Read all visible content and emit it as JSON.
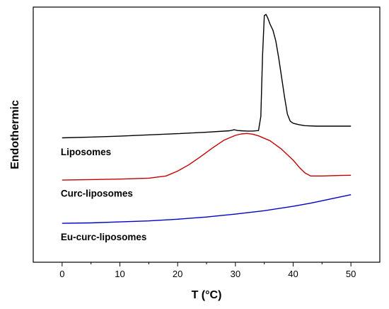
{
  "chart_data": {
    "type": "line",
    "title": "",
    "xlabel": "T (°C)",
    "ylabel": "Endothermic",
    "xlim": [
      -5,
      55
    ],
    "xticks": [
      0,
      10,
      20,
      30,
      40,
      50
    ],
    "ylim": [
      -0.5,
      10
    ],
    "y_tick_labels": false,
    "grid": false,
    "legend": "none",
    "series": [
      {
        "name": "Liposomes",
        "color": "#000000",
        "label_at": [
          0,
          3.9
        ],
        "x": [
          0,
          5,
          10,
          15,
          20,
          25,
          29,
          29.8,
          30.4,
          31,
          32,
          33,
          34,
          34.4,
          34.7,
          35,
          35.3,
          35.6,
          36,
          36.5,
          37,
          37.5,
          38,
          38.5,
          39,
          39.5,
          40,
          41,
          42,
          44,
          46,
          48,
          50
        ],
        "y": [
          4.62,
          4.65,
          4.69,
          4.74,
          4.79,
          4.85,
          4.91,
          4.95,
          4.92,
          4.91,
          4.9,
          4.9,
          4.92,
          5.5,
          8.0,
          9.65,
          9.7,
          9.55,
          9.3,
          9.05,
          8.6,
          7.9,
          7.1,
          6.3,
          5.6,
          5.3,
          5.22,
          5.16,
          5.12,
          5.1,
          5.1,
          5.1,
          5.1
        ]
      },
      {
        "name": "Curc-liposomes",
        "color": "#c40000",
        "label_at": [
          0,
          2.2
        ],
        "x": [
          0,
          5,
          10,
          15,
          18,
          20,
          22,
          24,
          26,
          28,
          30,
          31,
          32,
          33,
          34,
          36,
          38,
          40,
          41,
          42,
          43,
          45,
          48,
          50
        ],
        "y": [
          2.88,
          2.9,
          2.92,
          2.96,
          3.05,
          3.25,
          3.52,
          3.85,
          4.2,
          4.52,
          4.72,
          4.78,
          4.8,
          4.77,
          4.7,
          4.5,
          4.15,
          3.7,
          3.42,
          3.18,
          3.05,
          3.05,
          3.07,
          3.08
        ]
      },
      {
        "name": "Eu-curc-liposomes",
        "color": "#0000c8",
        "label_at": [
          0,
          0.4
        ],
        "x": [
          0,
          5,
          10,
          15,
          20,
          25,
          30,
          35,
          40,
          43,
          45,
          47,
          49,
          50
        ],
        "y": [
          1.1,
          1.12,
          1.16,
          1.2,
          1.27,
          1.36,
          1.48,
          1.62,
          1.8,
          1.93,
          2.03,
          2.13,
          2.23,
          2.28
        ]
      }
    ]
  }
}
